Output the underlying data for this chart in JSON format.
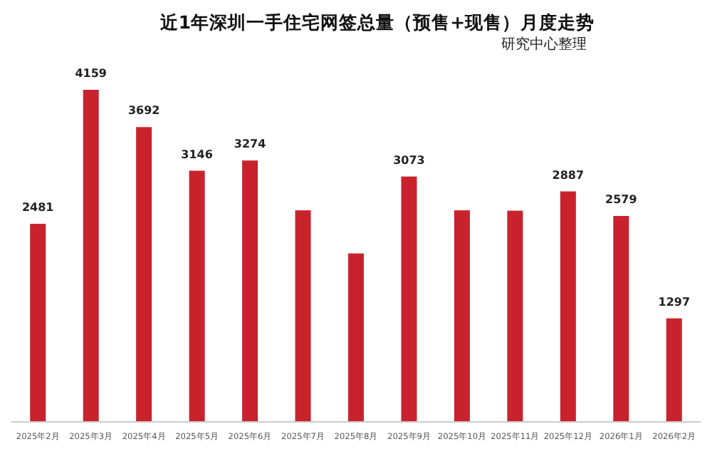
{
  "chart_data": {
    "type": "bar",
    "title": "近1年深圳一手住宅网签总量（预售+现售）月度走势",
    "annotations": [
      "研究中心整理"
    ],
    "categories": [
      "2025年2月",
      "2025年3月",
      "2025年4月",
      "2025年5月",
      "2025年6月",
      "2025年7月",
      "2025年8月",
      "2025年9月",
      "2025年10月",
      "2025年11月",
      "2025年12月",
      "2026年1月",
      "2026年2月"
    ],
    "values": [
      2481,
      4159,
      3692,
      3146,
      3274,
      2650,
      2110,
      3073,
      2650,
      2645,
      2887,
      2579,
      1297
    ],
    "value_labels": [
      "2481",
      "4159",
      "3692",
      "3146",
      "3274",
      null,
      null,
      "3073",
      null,
      null,
      "2887",
      "2579",
      "1297"
    ],
    "color": "#c8232c",
    "tick_labels": "x"
  }
}
